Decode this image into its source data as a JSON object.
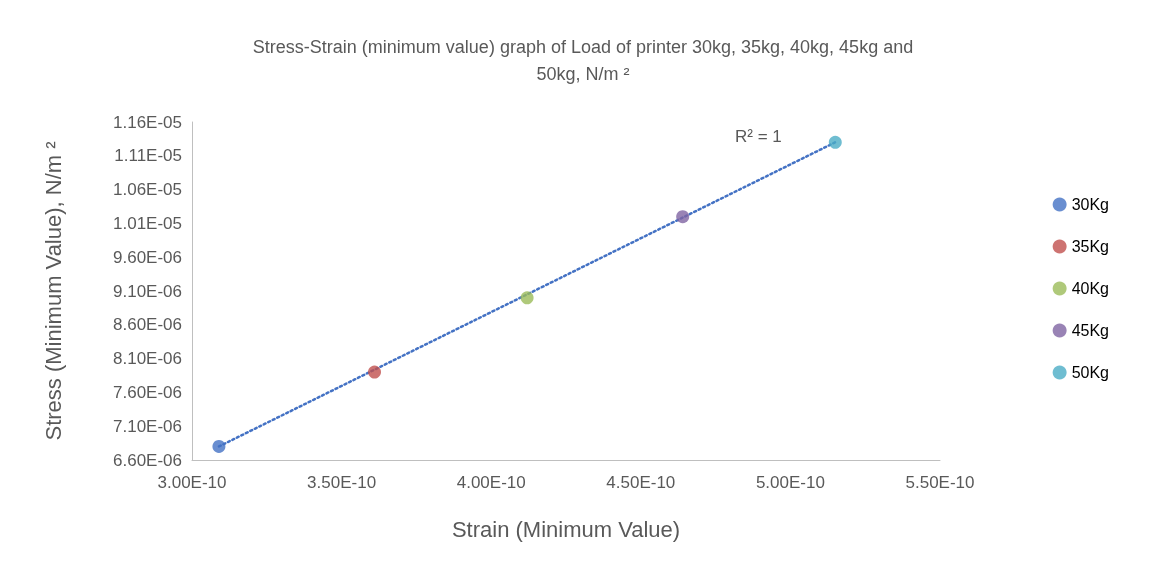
{
  "chart_data": {
    "type": "scatter",
    "title": "Stress-Strain (minimum value) graph of Load of printer 30kg, 35kg, 40kg, 45kg and\n50kg, N/m ²",
    "xlabel": "Strain (Minimum Value)",
    "ylabel": "Stress (Minimum Value), N/m ²",
    "series": [
      {
        "name": "30Kg",
        "color": "#4472c4",
        "x": [
          3.09e-10
        ],
        "values": [
          6.8e-06
        ]
      },
      {
        "name": "35Kg",
        "color": "#c0504d",
        "x": [
          3.61e-10
        ],
        "values": [
          7.9e-06
        ]
      },
      {
        "name": "40Kg",
        "color": "#9bbb59",
        "x": [
          4.12e-10
        ],
        "values": [
          9e-06
        ]
      },
      {
        "name": "45Kg",
        "color": "#8064a2",
        "x": [
          4.64e-10
        ],
        "values": [
          1.02e-05
        ]
      },
      {
        "name": "50Kg",
        "color": "#4bacc6",
        "x": [
          5.15e-10
        ],
        "values": [
          1.13e-05
        ]
      },
      {
        "type": "line",
        "color": "#4472c4",
        "line_style": "dotted",
        "marker": "none",
        "x": [
          3.09e-10,
          5.15e-10
        ],
        "values": [
          6.8e-06,
          1.13e-05
        ]
      }
    ],
    "annotations": [
      "R² = 1"
    ],
    "xlim": [
      3e-10,
      5.5e-10
    ],
    "xticks": [
      {
        "value": 3e-10,
        "label": "3.00E-10"
      },
      {
        "value": 3.5e-10,
        "label": "3.50E-10"
      },
      {
        "value": 4e-10,
        "label": "4.00E-10"
      },
      {
        "value": 4.5e-10,
        "label": "4.50E-10"
      },
      {
        "value": 5e-10,
        "label": "5.00E-10"
      },
      {
        "value": 5.5e-10,
        "label": "5.50E-10"
      }
    ],
    "ylim": [
      6.6e-06,
      1.16e-05
    ],
    "yticks": [
      {
        "value": 6.6e-06,
        "label": "6.60E-06"
      },
      {
        "value": 7.1e-06,
        "label": "7.10E-06"
      },
      {
        "value": 7.6e-06,
        "label": "7.60E-06"
      },
      {
        "value": 8.1e-06,
        "label": "8.10E-06"
      },
      {
        "value": 8.6e-06,
        "label": "8.60E-06"
      },
      {
        "value": 9.1e-06,
        "label": "9.10E-06"
      },
      {
        "value": 9.6e-06,
        "label": "9.60E-06"
      },
      {
        "value": 1.01e-05,
        "label": "1.01E-05"
      },
      {
        "value": 1.06e-05,
        "label": "1.06E-05"
      },
      {
        "value": 1.11e-05,
        "label": "1.11E-05"
      },
      {
        "value": 1.16e-05,
        "label": "1.16E-05"
      }
    ],
    "marker": "circle",
    "grid": false,
    "legend": "right"
  }
}
